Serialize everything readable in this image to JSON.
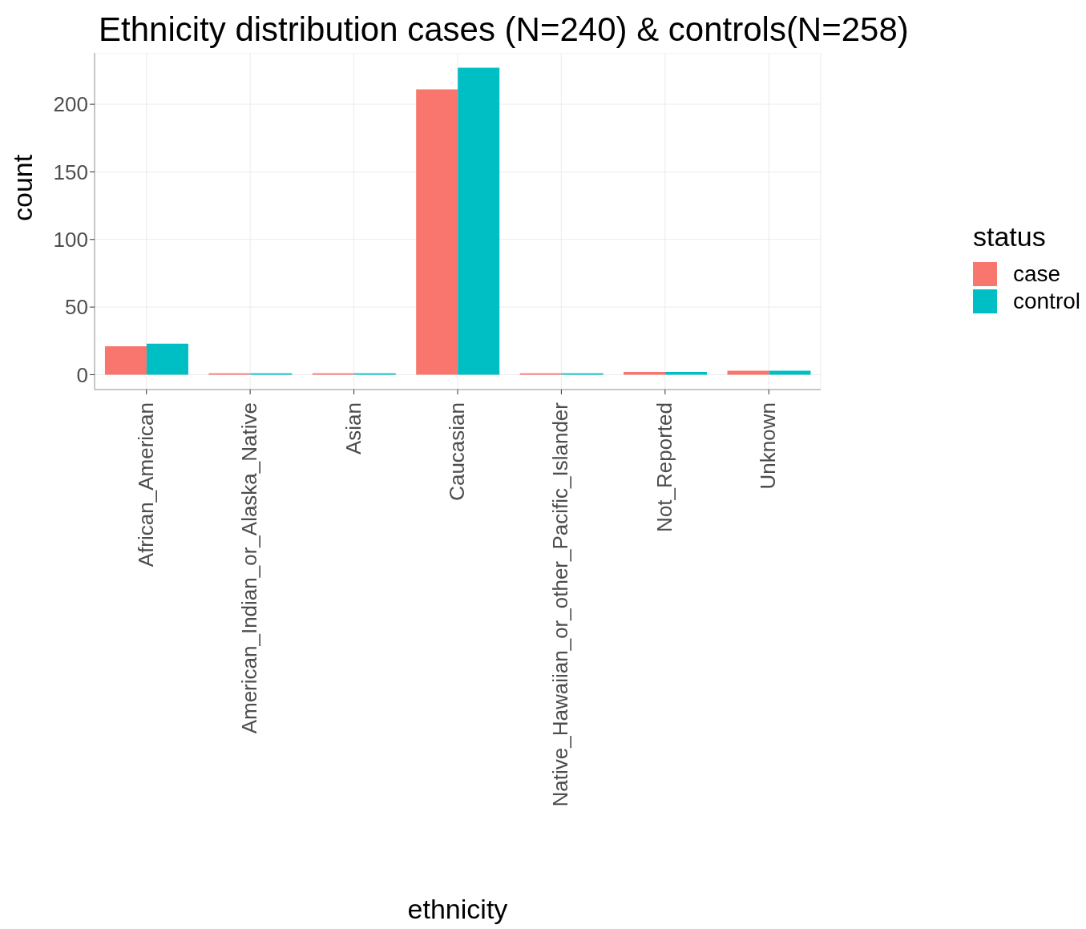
{
  "chart_data": {
    "type": "bar",
    "title": "Ethnicity distribution cases (N=240) & controls(N=258)",
    "xlabel": "ethnicity",
    "ylabel": "count",
    "legend_title": "status",
    "categories": [
      "African_American",
      "American_Indian_or_Alaska_Native",
      "Asian",
      "Caucasian",
      "Native_Hawaiian_or_other_Pacific_Islander",
      "Not_Reported",
      "Unknown"
    ],
    "series": [
      {
        "name": "case",
        "color": "#f8766d",
        "values": [
          21,
          1,
          1,
          211,
          1,
          2,
          3
        ]
      },
      {
        "name": "control",
        "color": "#00bfc4",
        "values": [
          23,
          1,
          1,
          227,
          1,
          2,
          3
        ]
      }
    ],
    "ylim": [
      -11,
      238
    ],
    "yticks": [
      0,
      50,
      100,
      150,
      200
    ],
    "grid": true,
    "legend": "right"
  }
}
